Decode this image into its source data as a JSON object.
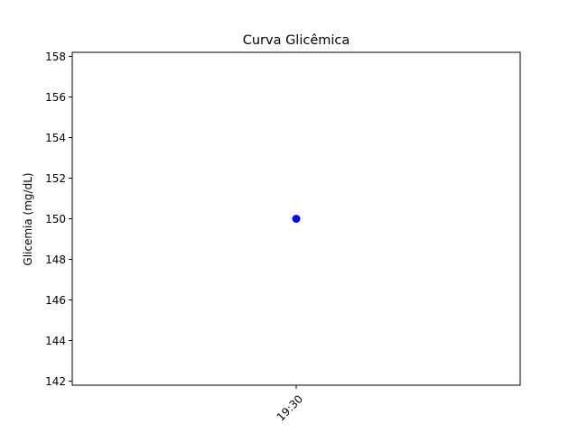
{
  "chart_data": {
    "type": "scatter",
    "title": "Curva Glicêmica",
    "xlabel": "",
    "ylabel": "Glicemia (mg/dL)",
    "ylim": [
      141.8,
      158.2
    ],
    "yticks": [
      142,
      144,
      146,
      148,
      150,
      152,
      154,
      156,
      158
    ],
    "xticks": [
      "19:30"
    ],
    "grid": false,
    "series": [
      {
        "name": "Glicemia",
        "x": [
          "19:30"
        ],
        "values": [
          150
        ],
        "color": "#0000ff",
        "marker": "circle"
      }
    ]
  }
}
